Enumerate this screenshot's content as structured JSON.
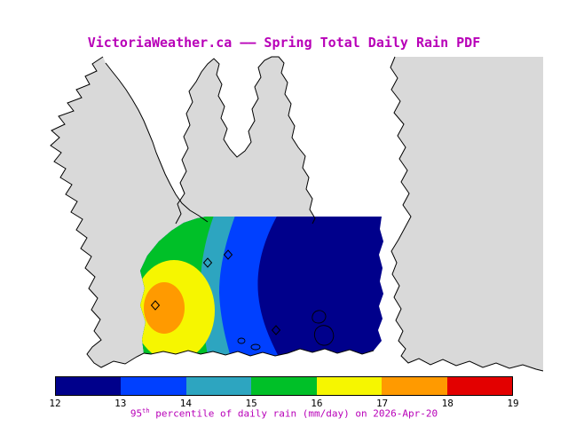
{
  "title": "VictoriaWeather.ca —— Spring Total Daily Rain PDF",
  "caption": {
    "base": "95",
    "sup": "th",
    "rest": " percentile of daily rain (mm/day) on 2026-Apr-20"
  },
  "colors": {
    "accent_magenta": "#b800b8",
    "land": "#d9d9d9",
    "water": "#ffffff",
    "coastline": "#000000"
  },
  "map": {
    "region": "coastline map with shaded rain-percentile field over the station network domain",
    "stations": {
      "marker": "open-diamond",
      "count": 4
    }
  },
  "colorbar": {
    "labels": [
      "12",
      "13",
      "14",
      "15",
      "16",
      "17",
      "18",
      "19"
    ],
    "segment_colors": [
      "#00008b",
      "#0040ff",
      "#2da5c0",
      "#00c028",
      "#f6f600",
      "#ff9a00",
      "#e30000"
    ],
    "units": "mm/day"
  },
  "chart_data": {
    "type": "heatmap",
    "subtype": "filled-contour-map",
    "title": "VictoriaWeather.ca —— Spring Total Daily Rain PDF",
    "variable": "95th percentile of daily rain",
    "units": "mm/day",
    "date": "2026-Apr-20",
    "colorbar_ticks": [
      12,
      13,
      14,
      15,
      16,
      17,
      18,
      19
    ],
    "contour_bands": [
      {
        "range": [
          12,
          13
        ],
        "color": "#00008b"
      },
      {
        "range": [
          13,
          14
        ],
        "color": "#0040ff"
      },
      {
        "range": [
          14,
          15
        ],
        "color": "#2da5c0"
      },
      {
        "range": [
          15,
          16
        ],
        "color": "#00c028"
      },
      {
        "range": [
          16,
          17
        ],
        "color": "#f6f600"
      },
      {
        "range": [
          17,
          18
        ],
        "color": "#ff9a00"
      },
      {
        "range": [
          18,
          19
        ],
        "color": "#e30000"
      }
    ],
    "spatial_pattern": "maximum ~17-18 mm/day (orange core) at the west edge of the domain, decreasing eastward to ~12-13 mm/day (dark navy) across the eastern half"
  }
}
